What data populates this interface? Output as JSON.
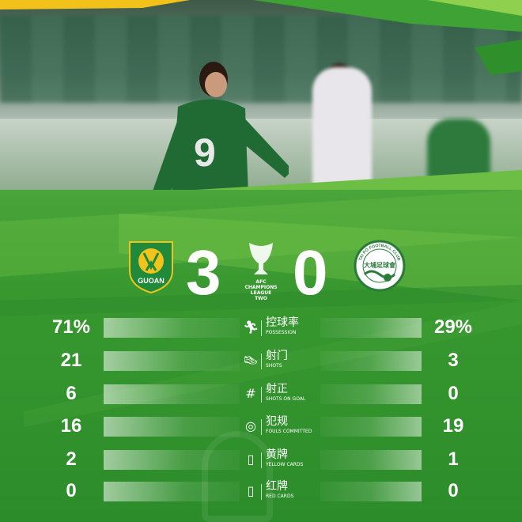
{
  "match": {
    "home_team": {
      "name": "GUOAN",
      "score": "3",
      "crest_colors": {
        "primary": "#1f8a3a",
        "accent": "#f2c31c"
      }
    },
    "away_team": {
      "name": "TAI PO FOOTBALL CLUB",
      "score": "0"
    },
    "competition": [
      "AFC",
      "CHAMPIONS",
      "LEAGUE",
      "TWO"
    ]
  },
  "stats": [
    {
      "icon": "running-player-icon",
      "label_cn": "控球率",
      "label_en": "POSSESSION",
      "home": "71%",
      "away": "29%"
    },
    {
      "icon": "boot-icon",
      "label_cn": "射门",
      "label_en": "SHOTS",
      "home": "21",
      "away": "3"
    },
    {
      "icon": "goal-net-icon",
      "label_cn": "射正",
      "label_en": "SHOTS ON GOAL",
      "home": "6",
      "away": "0"
    },
    {
      "icon": "whistle-icon",
      "label_cn": "犯规",
      "label_en": "FOULS COMMITTED",
      "home": "16",
      "away": "19"
    },
    {
      "icon": "yellow-card-icon",
      "label_cn": "黄牌",
      "label_en": "YELLOW CARDS",
      "home": "2",
      "away": "1"
    },
    {
      "icon": "red-card-icon",
      "label_cn": "红牌",
      "label_en": "RED CARDS",
      "home": "0",
      "away": "0"
    }
  ],
  "colors": {
    "background": "#38982f",
    "accent_light": "#8fd14f",
    "text": "#ffffff"
  }
}
